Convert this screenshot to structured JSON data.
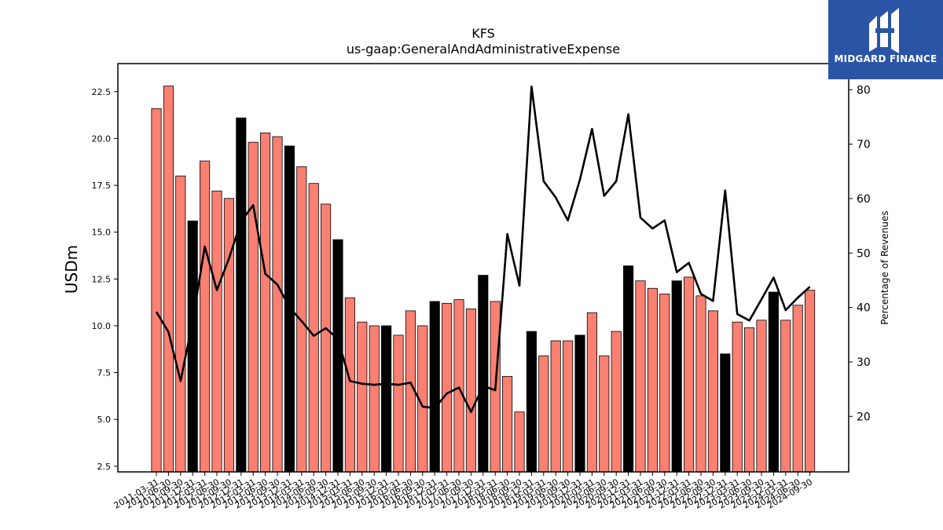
{
  "logo": {
    "text": "MIDGARD FINANCE"
  },
  "chart_data": {
    "type": "bar",
    "title": "KFS",
    "subtitle": "us-gaap:GeneralAndAdministrativeExpense",
    "ylabel": "USDm",
    "y2label": "Percentage of Revenues",
    "ylim": [
      2.2,
      24.0
    ],
    "y2lim": [
      9.8,
      84.8
    ],
    "yticks": [
      2.5,
      5.0,
      7.5,
      10.0,
      12.5,
      15.0,
      17.5,
      20.0,
      22.5
    ],
    "y2ticks": [
      20,
      30,
      40,
      50,
      60,
      70,
      80
    ],
    "categories": [
      "2011-03-31",
      "2011-06-30",
      "2011-09-30",
      "2011-12-31",
      "2012-03-31",
      "2012-06-30",
      "2012-09-30",
      "2012-12-31",
      "2013-03-31",
      "2013-06-30",
      "2013-09-30",
      "2013-12-31",
      "2014-03-31",
      "2014-06-30",
      "2014-09-30",
      "2014-12-31",
      "2015-03-31",
      "2015-06-30",
      "2015-09-30",
      "2015-12-31",
      "2016-03-31",
      "2016-06-30",
      "2016-09-30",
      "2016-12-31",
      "2017-03-31",
      "2017-06-30",
      "2017-09-30",
      "2017-12-31",
      "2018-03-31",
      "2018-06-30",
      "2018-09-30",
      "2018-12-31",
      "2019-03-31",
      "2019-06-30",
      "2019-09-30",
      "2019-12-31",
      "2020-03-31",
      "2020-06-30",
      "2020-09-30",
      "2020-12-31",
      "2021-03-31",
      "2021-06-30",
      "2021-09-30",
      "2021-12-31",
      "2022-03-31",
      "2022-06-30",
      "2022-09-30",
      "2022-12-31",
      "2023-03-31",
      "2023-06-30",
      "2023-09-30",
      "2023-12-31",
      "2024-03-31",
      "2024-06-30",
      "2024-09-30"
    ],
    "xtick_labels": [
      "2011-03-31",
      "2011-06-30",
      "2011-09-30",
      "2011-12-31",
      "2012-03-31",
      "2012-06-30",
      "2012-09-30",
      "2012-12-31",
      "2013-03-31",
      "2013-06-30",
      "2013-09-30",
      "2013-12-31",
      "2014-03-31",
      "2014-06-30",
      "2014-09-30",
      "2014-12-31",
      "2015-03-31",
      "2015-06-30",
      "2015-09-30",
      "2015-12-31",
      "2016-03-31",
      "2016-06-30",
      "2016-09-30",
      "2016-12-31",
      "2017-03-31",
      "2017-06-30",
      "2017-09-30",
      "2017-12-31",
      "2018-03-31",
      "2018-06-30",
      "2018-09-30",
      "2018-12-31",
      "2019-03-31",
      "2019-06-30",
      "2019-09-30",
      "2019-12-31",
      "2020-03-31",
      "2020-06-30",
      "2020-09-30",
      "2020-12-31",
      "2021-03-31",
      "2021-06-30",
      "2021-09-30",
      "2021-12-31",
      "2022-03-31",
      "2022-06-30",
      "2022-09-30",
      "2022-12-31",
      "2023-03-31",
      "2023-06-30",
      "2023-09-30",
      "2023-12-31",
      "2024-03-31",
      "2024-06-30",
      "2024-09-30"
    ],
    "series": [
      {
        "values": [
          21.6,
          22.8,
          18.0,
          15.6,
          18.8,
          17.2,
          16.8,
          21.1,
          19.8,
          20.3,
          20.1,
          19.6,
          18.5,
          17.6,
          16.5,
          14.6,
          11.5,
          10.2,
          10.0,
          10.0,
          9.5,
          10.8,
          10.0,
          11.3,
          11.2,
          11.4,
          10.9,
          12.7,
          11.3,
          7.3,
          5.4,
          9.7,
          8.4,
          9.2,
          9.2,
          9.5,
          10.7,
          8.4,
          9.7,
          13.2,
          12.4,
          12.0,
          11.7,
          12.4,
          12.6,
          11.6,
          10.8,
          8.5,
          10.2,
          9.9,
          10.3,
          11.8,
          10.3,
          11.1,
          11.9
        ],
        "highlight": [
          false,
          false,
          false,
          true,
          false,
          false,
          false,
          true,
          false,
          false,
          false,
          true,
          false,
          false,
          false,
          true,
          false,
          false,
          false,
          true,
          false,
          false,
          false,
          true,
          false,
          false,
          false,
          true,
          false,
          false,
          false,
          true,
          false,
          false,
          false,
          true,
          false,
          false,
          false,
          true,
          false,
          false,
          false,
          true,
          false,
          false,
          false,
          true,
          false,
          false,
          false,
          true,
          false,
          false,
          false
        ],
        "color": "#fa8072",
        "highlight_color": "#000000"
      },
      {
        "axis": "y2",
        "color": "#000000",
        "values": [
          39.2,
          35.5,
          26.5,
          37.5,
          51.2,
          43.2,
          49.0,
          55.8,
          58.8,
          46.2,
          44.2,
          40.0,
          37.5,
          34.8,
          36.2,
          34.2,
          26.5,
          26.0,
          25.8,
          26.0,
          25.8,
          26.2,
          21.8,
          21.5,
          24.2,
          25.3,
          20.8,
          25.6,
          24.8,
          53.5,
          44.0,
          80.6,
          63.2,
          60.2,
          56.0,
          63.5,
          72.8,
          60.5,
          63.2,
          75.5,
          56.5,
          54.5,
          56.0,
          46.5,
          48.2,
          42.5,
          41.2,
          61.5,
          38.8,
          37.6,
          41.5,
          45.5,
          39.5,
          41.8,
          43.8
        ]
      }
    ]
  }
}
